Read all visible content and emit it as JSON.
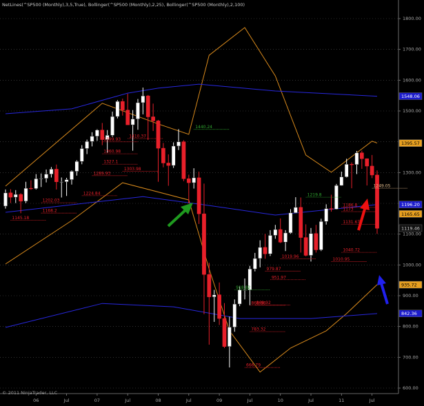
{
  "chart_data": {
    "type": "candlestick",
    "title": "NetLines(^SP500 (Monthly),3,5,True), Bollinger(^SP500 (Monthly),2,25), Bollinger(^SP500 (Monthly),2,100)",
    "footer": "© 2011 NinjaTrader, LLC",
    "categories": [
      null,
      null,
      null,
      null,
      null,
      null,
      "06",
      null,
      null,
      null,
      null,
      null,
      "Jul",
      null,
      null,
      null,
      null,
      null,
      "07",
      null,
      null,
      null,
      null,
      null,
      "Jul",
      null,
      null,
      null,
      null,
      null,
      "08",
      null,
      null,
      null,
      null,
      null,
      "Jul",
      null,
      null,
      null,
      null,
      null,
      "09",
      null,
      null,
      null,
      null,
      null,
      "Jul",
      null,
      null,
      null,
      null,
      null,
      "10",
      null,
      null,
      null,
      null,
      null,
      "Jul",
      null,
      null,
      null,
      null,
      null,
      "11",
      null,
      null,
      null,
      null,
      null,
      "Jul",
      null
    ],
    "open": [
      1191,
      1234,
      1220,
      1229,
      1207,
      1249,
      1248,
      1280,
      1281,
      1295,
      1311,
      1270,
      1270,
      1277,
      1304,
      1336,
      1378,
      1401,
      1418,
      1438,
      1407,
      1421,
      1482,
      1531,
      1503,
      1455,
      1474,
      1527,
      1549,
      1481,
      1468,
      1379,
      1331,
      1323,
      1386,
      1400,
      1280,
      1267,
      1283,
      1166,
      969,
      896,
      903,
      826,
      735,
      798,
      873,
      919,
      919,
      987,
      1021,
      1057,
      1036,
      1096,
      1115,
      1074,
      1104,
      1169,
      1187,
      1089,
      1031,
      1102,
      1049,
      1141,
      1183,
      1181,
      1258,
      1286,
      1327,
      1326,
      1364,
      1345,
      1321,
      1292
    ],
    "high": [
      1245,
      1246,
      1243,
      1233,
      1270,
      1275,
      1295,
      1297,
      1310,
      1318,
      1326,
      1284,
      1283,
      1307,
      1340,
      1389,
      1407,
      1431,
      1441,
      1461,
      1438,
      1498,
      1535,
      1540,
      1556,
      1503,
      1539,
      1576,
      1552,
      1524,
      1471,
      1396,
      1359,
      1398,
      1441,
      1405,
      1293,
      1314,
      1303,
      1264,
      1007,
      919,
      943,
      876,
      832,
      888,
      930,
      956,
      997,
      1039,
      1080,
      1101,
      1113,
      1130,
      1151,
      1113,
      1181,
      1220,
      1219,
      1132,
      1120,
      1130,
      1150,
      1197,
      1228,
      1263,
      1303,
      1345,
      1333,
      1370,
      1371,
      1346,
      1357,
      1307
    ],
    "low": [
      1183,
      1201,
      1201,
      1168,
      1201,
      1244,
      1245,
      1253,
      1268,
      1284,
      1245,
      1219,
      1224,
      1261,
      1290,
      1327,
      1360,
      1385,
      1403,
      1389,
      1364,
      1416,
      1476,
      1485,
      1455,
      1371,
      1439,
      1489,
      1406,
      1435,
      1270,
      1317,
      1257,
      1315,
      1373,
      1272,
      1200,
      1248,
      1133,
      840,
      741,
      815,
      805,
      730,
      667,
      783,
      866,
      888,
      869,
      979,
      992,
      1020,
      1029,
      1085,
      1071,
      1045,
      1101,
      1170,
      1040,
      1028,
      1011,
      1040,
      1045,
      1131,
      1173,
      1180,
      1257,
      1284,
      1249,
      1295,
      1312,
      1258,
      1282,
      1101
    ],
    "close": [
      1234,
      1220,
      1229,
      1207,
      1249,
      1248,
      1280,
      1281,
      1295,
      1311,
      1270,
      1270,
      1277,
      1304,
      1336,
      1378,
      1401,
      1418,
      1438,
      1407,
      1421,
      1482,
      1531,
      1503,
      1455,
      1474,
      1527,
      1549,
      1481,
      1468,
      1379,
      1331,
      1323,
      1386,
      1400,
      1280,
      1267,
      1283,
      1166,
      969,
      896,
      903,
      826,
      735,
      798,
      873,
      919,
      919,
      987,
      1021,
      1057,
      1036,
      1096,
      1115,
      1074,
      1104,
      1169,
      1187,
      1089,
      1031,
      1102,
      1049,
      1141,
      1183,
      1181,
      1258,
      1286,
      1327,
      1326,
      1364,
      1345,
      1321,
      1292,
      1119
    ],
    "up_color": "#ffffff",
    "down_color": "#e8202a",
    "bands": [
      {
        "color": "#d98a1c",
        "x": [
          0,
          19,
          30,
          36,
          40,
          47,
          53,
          59,
          64,
          72,
          73
        ],
        "values": [
          1256,
          1525,
          1458,
          1424,
          1681,
          1771,
          1614,
          1357,
          1301,
          1402,
          1396
        ]
      },
      {
        "color": "#d98a1c",
        "x": [
          0,
          13,
          23,
          36,
          40,
          44,
          50,
          56,
          63,
          67,
          73
        ],
        "values": [
          1003,
          1144,
          1267,
          1211,
          987,
          786,
          652,
          730,
          786,
          842,
          936
        ]
      },
      {
        "color": "#2828e0",
        "x": [
          0,
          13,
          24,
          30,
          38,
          53,
          73
        ],
        "values": [
          1491,
          1507,
          1558,
          1574,
          1587,
          1565,
          1548
        ]
      },
      {
        "color": "#2828e0",
        "x": [
          0,
          27,
          40,
          53,
          73
        ],
        "values": [
          1171,
          1222,
          1193,
          1162,
          1196
        ]
      },
      {
        "color": "#2828e0",
        "x": [
          0,
          19,
          33,
          46,
          60,
          73
        ],
        "values": [
          797,
          875,
          864,
          826,
          826,
          842
        ]
      }
    ],
    "levels": [
      {
        "x": 37,
        "value": 1440.24,
        "color": "#2fa82f"
      },
      {
        "x": 24,
        "value": 1410.37,
        "color": "#e8202a"
      },
      {
        "x": 19,
        "value": 1399.93,
        "color": "#e8202a"
      },
      {
        "x": 19,
        "value": 1360.98,
        "color": "#e8202a"
      },
      {
        "x": 23,
        "value": 1303.98,
        "color": "#e8202a"
      },
      {
        "x": 19,
        "value": 1327.1,
        "color": "#e8202a"
      },
      {
        "x": 17,
        "value": 1289.93,
        "color": "#e8202a"
      },
      {
        "x": 15,
        "value": 1224.84,
        "color": "#e8202a"
      },
      {
        "x": 7,
        "value": 1202.03,
        "color": "#e8202a"
      },
      {
        "x": 7,
        "value": 1168.2,
        "color": "#e8202a"
      },
      {
        "x": 1,
        "value": 1145.18,
        "color": "#e8202a"
      },
      {
        "x": 59,
        "value": 1219.8,
        "color": "#2fa82f"
      },
      {
        "x": 72,
        "value": 1249.05,
        "color": "#e8c090"
      },
      {
        "x": 66,
        "value": 1186.8,
        "color": "#e8202a"
      },
      {
        "x": 66,
        "value": 1173,
        "color": "#e8202a"
      },
      {
        "x": 66,
        "value": 1131.67,
        "color": "#e8202a"
      },
      {
        "x": 66,
        "value": 1040.72,
        "color": "#e8202a"
      },
      {
        "x": 64,
        "value": 1010.95,
        "color": "#e8202a"
      },
      {
        "x": 54,
        "value": 1019.96,
        "color": "#e8202a"
      },
      {
        "x": 52,
        "value": 951.97,
        "color": "#e8202a"
      },
      {
        "x": 51,
        "value": 979.87,
        "color": "#e8202a"
      },
      {
        "x": 45,
        "value": 918.82,
        "color": "#2fa82f"
      },
      {
        "x": 48,
        "value": 868.86,
        "color": "#e8202a"
      },
      {
        "x": 49,
        "value": 869.92,
        "color": "#e8202a"
      },
      {
        "x": 48,
        "value": 783.32,
        "color": "#e8202a"
      },
      {
        "x": 47,
        "value": 666.79,
        "color": "#e8202a"
      }
    ],
    "markers": [
      {
        "value": 1548.06,
        "label": "1548.06",
        "color": "#1c1ccc",
        "text_color": "#ffffff"
      },
      {
        "value": 1395.57,
        "label": "1395.57",
        "color": "#e8a020",
        "text_color": "#000000"
      },
      {
        "value": 1196.2,
        "label": "1196.20",
        "color": "#1c1ccc",
        "text_color": "#ffffff"
      },
      {
        "value": 1165.65,
        "label": "1165.65",
        "color": "#e8a020",
        "text_color": "#000000"
      },
      {
        "value": 1119.46,
        "label": "1119.46",
        "color": "#111111",
        "text_color": "#cccccc"
      },
      {
        "value": 935.72,
        "label": "935.72",
        "color": "#e8a020",
        "text_color": "#000000"
      },
      {
        "value": 842.36,
        "label": "842.36",
        "color": "#1c1ccc",
        "text_color": "#ffffff"
      }
    ],
    "ylim": [
      600,
      1800
    ],
    "yticks": [
      {
        "value": 600,
        "label": "600.00"
      },
      {
        "value": 700,
        "label": "700.00"
      },
      {
        "value": 800,
        "label": "800.00"
      },
      {
        "value": 900,
        "label": "900.00"
      },
      {
        "value": 1000,
        "label": "1000.00"
      },
      {
        "value": 1100,
        "label": "1100.00"
      },
      {
        "value": 1200,
        "label": "1200.00"
      },
      {
        "value": 1300,
        "label": "1300.00"
      },
      {
        "value": 1400,
        "label": "1400.00"
      },
      {
        "value": 1500,
        "label": "1500.00"
      },
      {
        "value": 1600,
        "label": "1600.00"
      },
      {
        "value": 1700,
        "label": "1700.00"
      },
      {
        "value": 1800,
        "label": "1800.00"
      }
    ],
    "grid": true
  }
}
